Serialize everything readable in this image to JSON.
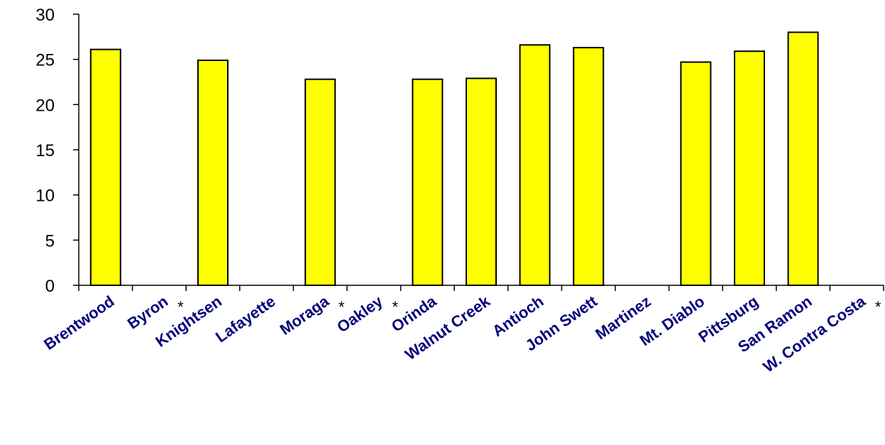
{
  "chart_data": {
    "type": "bar",
    "categories": [
      "Brentwood",
      "Byron",
      "Knightsen",
      "Lafayette",
      "Moraga",
      "Oakley",
      "Orinda",
      "Walnut Creek",
      "Antioch",
      "John Swett",
      "Martinez",
      "Mt. Diablo",
      "Pittsburg",
      "San Ramon",
      "W. Contra Costa"
    ],
    "values": [
      26.1,
      null,
      24.9,
      null,
      22.8,
      null,
      22.8,
      22.9,
      26.6,
      26.3,
      null,
      24.7,
      25.9,
      28.0,
      null
    ],
    "category_notes": [
      "",
      "*",
      "",
      "",
      "*",
      "*",
      "",
      "",
      "",
      "",
      "",
      "",
      "",
      "",
      "*"
    ],
    "ylim": [
      0,
      30
    ],
    "yticks": [
      0,
      5,
      10,
      15,
      20,
      25,
      30
    ],
    "title": "",
    "xlabel": "",
    "ylabel": "",
    "legend": "none",
    "grid": false,
    "colors": {
      "bar_fill": "#ffff00",
      "bar_stroke": "#000000",
      "x_label": "#00007a",
      "axis": "#000000"
    }
  }
}
